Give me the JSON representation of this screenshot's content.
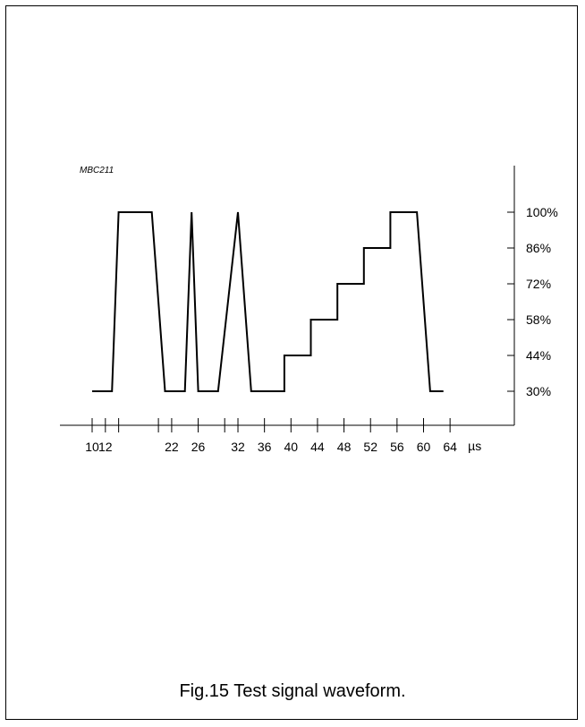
{
  "figure": {
    "code": "MBC211",
    "caption": "Fig.15  Test signal waveform."
  },
  "chart_data": {
    "type": "line",
    "title": "",
    "xlabel": "",
    "ylabel": "",
    "x_unit": "µs",
    "x_ticks": [
      10,
      12,
      22,
      26,
      32,
      36,
      40,
      44,
      48,
      52,
      56,
      60,
      64
    ],
    "x_ticks_unlabeled": [
      14,
      20,
      30
    ],
    "y_ticks": [
      100,
      86,
      72,
      58,
      44,
      30
    ],
    "y_tick_labels": [
      "100%",
      "86%",
      "72%",
      "58%",
      "44%",
      "30%"
    ],
    "xlim": [
      10,
      64
    ],
    "ylim": [
      30,
      100
    ],
    "grid": false,
    "series": [
      {
        "points": [
          [
            10.0,
            30
          ],
          [
            13.0,
            30
          ],
          [
            14.0,
            100
          ],
          [
            19.0,
            100
          ],
          [
            21.0,
            30
          ],
          [
            24.0,
            30
          ],
          [
            25.0,
            100
          ],
          [
            26.0,
            30
          ],
          [
            29.0,
            30
          ],
          [
            32.0,
            100
          ],
          [
            34.0,
            30
          ],
          [
            39.0,
            30
          ],
          [
            39.0,
            44
          ],
          [
            43.0,
            44
          ],
          [
            43.0,
            58
          ],
          [
            47.0,
            58
          ],
          [
            47.0,
            72
          ],
          [
            51.0,
            72
          ],
          [
            51.0,
            86
          ],
          [
            55.0,
            86
          ],
          [
            55.0,
            100
          ],
          [
            59.0,
            100
          ],
          [
            61.0,
            30
          ],
          [
            63.0,
            30
          ]
        ]
      }
    ]
  }
}
